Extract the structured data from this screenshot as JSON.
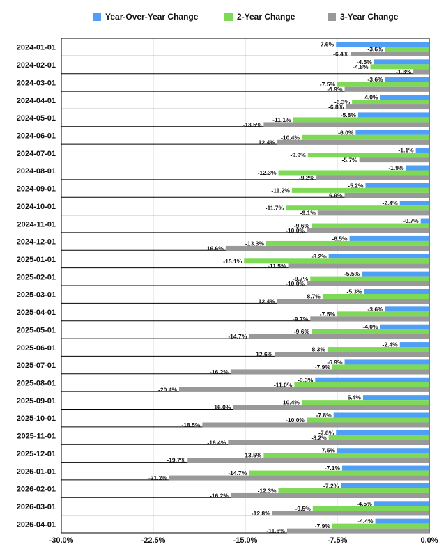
{
  "chart_data": {
    "type": "bar",
    "orientation": "horizontal",
    "categories": [
      "2024-01-01",
      "2024-02-01",
      "2024-03-01",
      "2024-04-01",
      "2024-05-01",
      "2024-06-01",
      "2024-07-01",
      "2024-08-01",
      "2024-09-01",
      "2024-10-01",
      "2024-11-01",
      "2024-12-01",
      "2025-01-01",
      "2025-02-01",
      "2025-03-01",
      "2025-04-01",
      "2025-05-01",
      "2025-06-01",
      "2025-07-01",
      "2025-08-01",
      "2025-09-01",
      "2025-10-01",
      "2025-11-01",
      "2025-12-01",
      "2026-01-01",
      "2026-02-01",
      "2026-03-01",
      "2026-04-01"
    ],
    "series": [
      {
        "name": "Year-Over-Year Change",
        "color": "#4e9ff5",
        "values": [
          -7.6,
          -4.5,
          -3.6,
          -4.0,
          -5.8,
          -6.0,
          -1.1,
          -1.9,
          -5.2,
          -2.4,
          -0.7,
          -6.5,
          -8.2,
          -5.5,
          -5.3,
          -3.6,
          -4.0,
          -2.4,
          -6.9,
          -9.3,
          -5.4,
          -7.8,
          -7.6,
          -7.5,
          -7.1,
          -7.2,
          -4.5,
          -4.4
        ]
      },
      {
        "name": "2-Year Change",
        "color": "#7ed957",
        "values": [
          -3.6,
          -4.8,
          -7.5,
          -6.3,
          -11.1,
          -10.4,
          -9.9,
          -12.3,
          -11.2,
          -11.7,
          -9.6,
          -13.3,
          -15.1,
          -9.7,
          -8.7,
          -7.5,
          -9.6,
          -8.3,
          -7.9,
          -11.0,
          -10.4,
          -10.0,
          -8.2,
          -13.5,
          -14.7,
          -12.3,
          -9.5,
          -7.9
        ]
      },
      {
        "name": "3-Year Change",
        "color": "#999999",
        "values": [
          -6.4,
          -1.3,
          -6.9,
          -6.8,
          -13.5,
          -12.4,
          -5.7,
          -9.2,
          -6.9,
          -9.1,
          -10.0,
          -16.6,
          -11.5,
          -10.0,
          -12.4,
          -9.7,
          -14.7,
          -12.6,
          -16.2,
          -20.4,
          -16.0,
          -18.5,
          -16.4,
          -19.7,
          -21.2,
          -16.2,
          -12.8,
          -11.6
        ]
      }
    ],
    "xlim": [
      -30,
      0
    ],
    "xticks": [
      "-30.0%",
      "-22.5%",
      "-15.0%",
      "-7.5%",
      "0.0%"
    ],
    "xtick_values": [
      -30,
      -22.5,
      -15,
      -7.5,
      0
    ],
    "legend_position": "top-center",
    "grid": true,
    "value_suffix": "%"
  }
}
